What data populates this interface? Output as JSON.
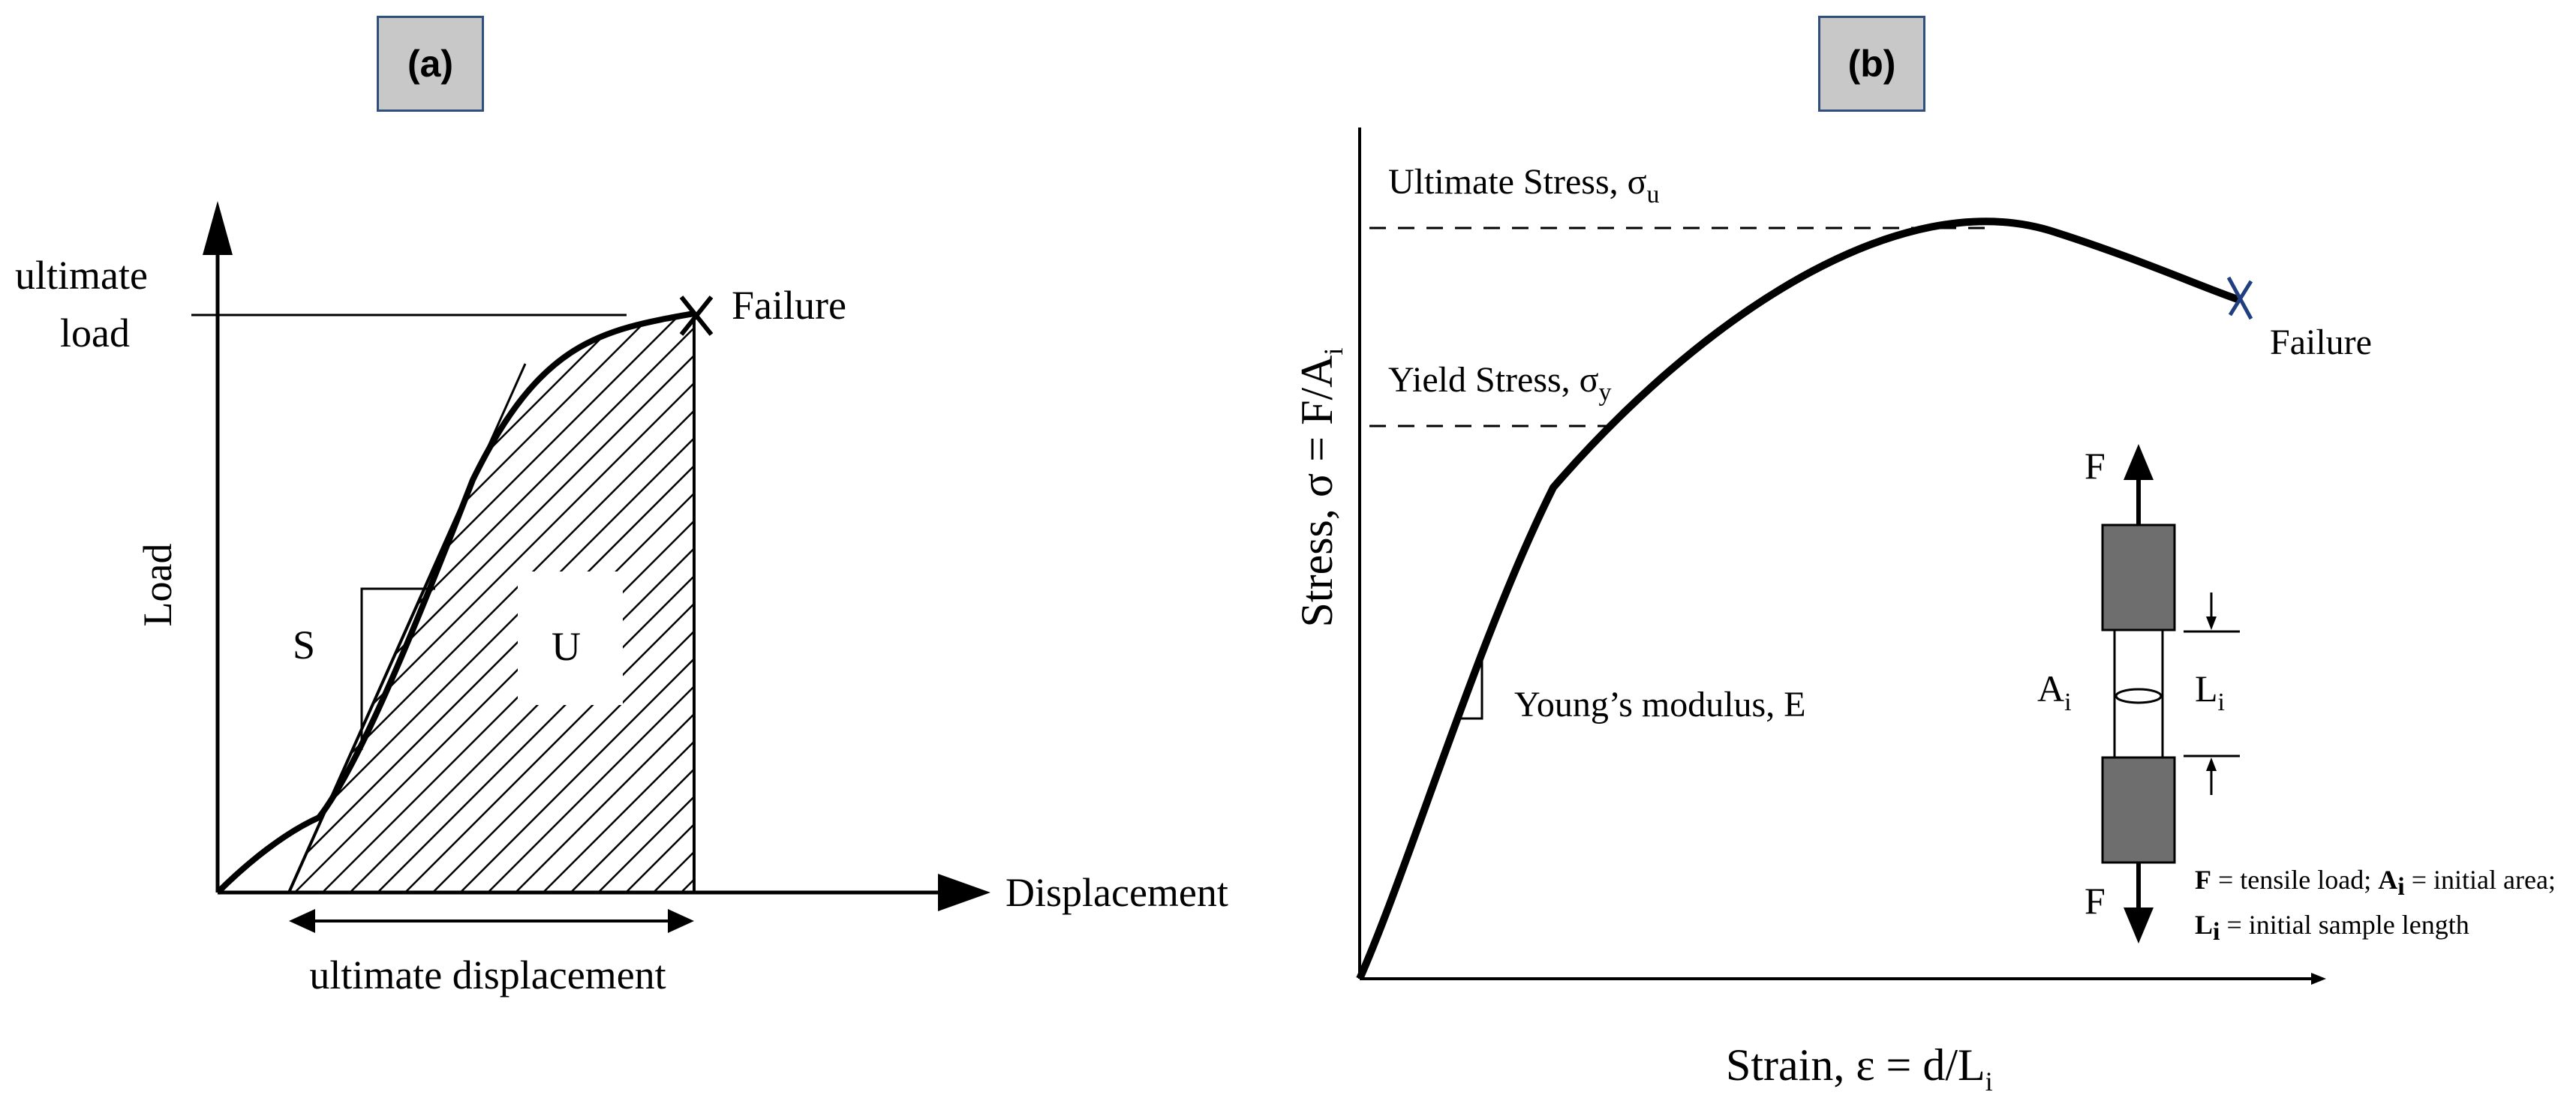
{
  "panel_a": {
    "label": "(a)",
    "x_axis_label": "Displacement",
    "y_axis_label": "Load",
    "ultimate_load_line1": "ultimate",
    "ultimate_load_line2": "load",
    "failure_label": "Failure",
    "failure_mark": "X",
    "region_s": "S",
    "region_u": "U",
    "ultimate_displacement": "ultimate displacement"
  },
  "panel_b": {
    "label": "(b)",
    "ultimate_stress": "Ultimate Stress, σ",
    "ultimate_stress_sub": "u",
    "yield_stress": "Yield Stress, σ",
    "yield_stress_sub": "y",
    "failure_label": "Failure",
    "youngs_modulus": "Young’s modulus, E",
    "y_axis_label": "Stress, σ = F/A",
    "y_axis_sub": "i",
    "x_axis_label": "Strain, ε = d/L",
    "x_axis_sub": "i",
    "specimen": {
      "force_top": "F",
      "force_bottom": "F",
      "area_label": "A",
      "area_sub": "i",
      "length_label": "L",
      "length_sub": "i"
    },
    "legend": {
      "line1_f": "F",
      "line1_f_text": " = tensile load; ",
      "line1_a": "A",
      "line1_a_sub": "i",
      "line1_a_text": " = initial area;",
      "line2_l": "L",
      "line2_l_sub": "i",
      "line2_text": " = initial sample length"
    },
    "colors": {
      "failure_mark": "#1f3f7f"
    }
  }
}
